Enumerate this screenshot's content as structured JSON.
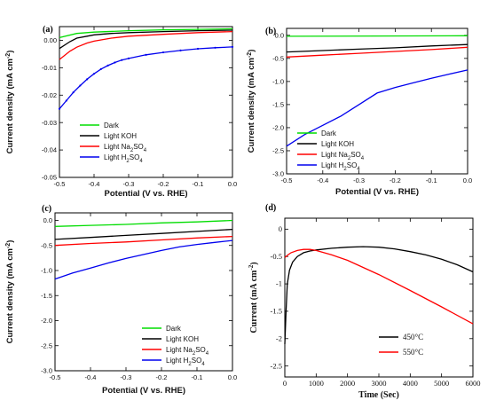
{
  "chart_data": [
    {
      "id": "a",
      "panel_label": "(a)",
      "type": "line",
      "xlabel": "Potential (V vs. RHE)",
      "ylabel_main": "Current density (mA cm",
      "ylabel_sup": "-2",
      "ylabel_tail": ")",
      "xlim": [
        -0.5,
        0.0
      ],
      "ylim": [
        -0.05,
        0.005
      ],
      "xticks": [
        -0.5,
        -0.4,
        -0.3,
        -0.2,
        -0.1,
        0.0
      ],
      "xtick_labels": [
        "-0.5",
        "-0.4",
        "-0.3",
        "-0.2",
        "-0.1",
        "0.0"
      ],
      "yticks": [
        0.0,
        -0.01,
        -0.02,
        -0.03,
        -0.04,
        -0.05
      ],
      "ytick_labels": [
        "0.00",
        "-0.01",
        "-0.02",
        "-0.03",
        "-0.04",
        "-0.05"
      ],
      "legend_position": "bottom-right",
      "series": [
        {
          "name": "Dark",
          "color": "#00dd00",
          "marker": false,
          "x": [
            -0.5,
            -0.45,
            -0.4,
            -0.3,
            -0.2,
            -0.1,
            0.0
          ],
          "y": [
            0.001,
            0.0025,
            0.003,
            0.0035,
            0.0038,
            0.004,
            0.0042
          ]
        },
        {
          "name": "Light KOH",
          "color": "#000000",
          "marker": false,
          "x": [
            -0.5,
            -0.47,
            -0.45,
            -0.42,
            -0.4,
            -0.35,
            -0.3,
            -0.2,
            -0.1,
            0.0
          ],
          "y": [
            -0.003,
            -0.0005,
            0.0008,
            0.0015,
            0.002,
            0.0025,
            0.0028,
            0.0032,
            0.0035,
            0.0037
          ]
        },
        {
          "name": "Light Na2SO4",
          "color": "#ff0000",
          "marker": false,
          "x": [
            -0.5,
            -0.47,
            -0.45,
            -0.42,
            -0.4,
            -0.35,
            -0.3,
            -0.2,
            -0.1,
            0.0
          ],
          "y": [
            -0.007,
            -0.004,
            -0.0025,
            -0.001,
            -0.0003,
            0.0008,
            0.0015,
            0.0022,
            0.0028,
            0.0032
          ]
        },
        {
          "name": "Light H2SO4",
          "color": "#0000ee",
          "marker": true,
          "x": [
            -0.5,
            -0.48,
            -0.46,
            -0.44,
            -0.42,
            -0.4,
            -0.38,
            -0.36,
            -0.34,
            -0.32,
            -0.3,
            -0.25,
            -0.2,
            -0.15,
            -0.1,
            -0.05,
            0.0
          ],
          "y": [
            -0.025,
            -0.022,
            -0.019,
            -0.0165,
            -0.0142,
            -0.0122,
            -0.0105,
            -0.0092,
            -0.0081,
            -0.0072,
            -0.0066,
            -0.0053,
            -0.0044,
            -0.0037,
            -0.0031,
            -0.0027,
            -0.0024
          ]
        }
      ]
    },
    {
      "id": "b",
      "panel_label": "(b)",
      "type": "line",
      "xlabel": "Potential (V vs. RHE)",
      "ylabel_main": "Current density (mA cm",
      "ylabel_sup": "-2",
      "ylabel_tail": ")",
      "xlim": [
        -0.5,
        0.0
      ],
      "ylim": [
        -3.0,
        0.15
      ],
      "xticks": [
        -0.5,
        -0.4,
        -0.3,
        -0.2,
        -0.1,
        0.0
      ],
      "xtick_labels": [
        "-0.5",
        "-0.4",
        "-0.3",
        "-0.2",
        "-0.1",
        "0.0"
      ],
      "yticks": [
        0.0,
        -0.5,
        -1.0,
        -1.5,
        -2.0,
        -2.5,
        -3.0
      ],
      "ytick_labels": [
        "0.0",
        "-0.5",
        "-1.0",
        "-1.5",
        "-2.0",
        "-2.5",
        "-3.0"
      ],
      "legend_position": "bottom-right",
      "series": [
        {
          "name": "Dark",
          "color": "#00dd00",
          "marker": false,
          "x": [
            -0.5,
            0.0
          ],
          "y": [
            -0.02,
            -0.01
          ]
        },
        {
          "name": "Light KOH",
          "color": "#000000",
          "marker": false,
          "x": [
            -0.5,
            -0.4,
            -0.3,
            -0.2,
            -0.1,
            0.0
          ],
          "y": [
            -0.36,
            -0.33,
            -0.3,
            -0.27,
            -0.23,
            -0.2
          ]
        },
        {
          "name": "Light Na2SO4",
          "color": "#ff0000",
          "marker": false,
          "x": [
            -0.5,
            -0.4,
            -0.3,
            -0.2,
            -0.1,
            0.0
          ],
          "y": [
            -0.47,
            -0.43,
            -0.39,
            -0.35,
            -0.31,
            -0.26
          ]
        },
        {
          "name": "Light H2SO4",
          "color": "#0000ee",
          "marker": false,
          "x": [
            -0.5,
            -0.45,
            -0.4,
            -0.35,
            -0.3,
            -0.25,
            -0.2,
            -0.15,
            -0.1,
            -0.05,
            0.0
          ],
          "y": [
            -2.4,
            -2.15,
            -1.95,
            -1.75,
            -1.5,
            -1.25,
            -1.13,
            -1.03,
            -0.93,
            -0.84,
            -0.75
          ]
        }
      ]
    },
    {
      "id": "c",
      "panel_label": "(c)",
      "type": "line",
      "xlabel": "Potential (V vs. RHE)",
      "ylabel_main": "Current density (mA cm",
      "ylabel_sup": "-2",
      "ylabel_tail": ")",
      "xlim": [
        -0.5,
        0.0
      ],
      "ylim": [
        -3.0,
        0.15
      ],
      "xticks": [
        -0.5,
        -0.4,
        -0.3,
        -0.2,
        -0.1,
        0.0
      ],
      "xtick_labels": [
        "-0.5",
        "-0.4",
        "-0.3",
        "-0.2",
        "-0.1",
        "0.0"
      ],
      "yticks": [
        0.0,
        -0.5,
        -1.0,
        -1.5,
        -2.0,
        -2.5,
        -3.0
      ],
      "ytick_labels": [
        "0.0",
        "-0.5",
        "-1.0",
        "-1.5",
        "-2.0",
        "-2.5",
        "-3.0"
      ],
      "legend_position": "bottom-right",
      "series": [
        {
          "name": "Dark",
          "color": "#00dd00",
          "marker": false,
          "x": [
            -0.5,
            -0.4,
            -0.3,
            -0.2,
            -0.1,
            0.0
          ],
          "y": [
            -0.12,
            -0.1,
            -0.08,
            -0.05,
            -0.03,
            0.0
          ]
        },
        {
          "name": "Light KOH",
          "color": "#000000",
          "marker": false,
          "x": [
            -0.5,
            -0.4,
            -0.3,
            -0.2,
            -0.1,
            0.0
          ],
          "y": [
            -0.38,
            -0.34,
            -0.3,
            -0.26,
            -0.22,
            -0.18
          ]
        },
        {
          "name": "Light Na2SO4",
          "color": "#ff0000",
          "marker": false,
          "x": [
            -0.5,
            -0.4,
            -0.3,
            -0.2,
            -0.1,
            0.0
          ],
          "y": [
            -0.5,
            -0.46,
            -0.43,
            -0.39,
            -0.35,
            -0.32
          ]
        },
        {
          "name": "Light H2SO4",
          "color": "#0000ee",
          "marker": false,
          "x": [
            -0.5,
            -0.45,
            -0.4,
            -0.35,
            -0.3,
            -0.25,
            -0.2,
            -0.15,
            -0.1,
            -0.05,
            0.0
          ],
          "y": [
            -1.17,
            -1.05,
            -0.95,
            -0.85,
            -0.76,
            -0.68,
            -0.6,
            -0.53,
            -0.48,
            -0.44,
            -0.4
          ]
        }
      ]
    },
    {
      "id": "d",
      "panel_label": "(d)",
      "type": "line",
      "xlabel": "Time (Sec)",
      "ylabel_main": "Current (mA cm",
      "ylabel_sup": "-2",
      "ylabel_tail": ")",
      "xlim": [
        0,
        6000
      ],
      "ylim": [
        -2.7,
        0.2
      ],
      "xticks": [
        0,
        1000,
        2000,
        3000,
        4000,
        5000,
        6000
      ],
      "xtick_labels": [
        "0",
        "1000",
        "2000",
        "3000",
        "4000",
        "5000",
        "6000"
      ],
      "yticks": [
        0.0,
        -0.5,
        -1.0,
        -1.5,
        -2.0,
        -2.5
      ],
      "ytick_labels": [
        "0",
        "-0.5",
        "-1",
        "-1.5",
        "-2",
        "-2.5"
      ],
      "legend_position": "bottom-right",
      "series": [
        {
          "name": "450°C",
          "color": "#000000",
          "marker": false,
          "x": [
            0,
            40,
            80,
            150,
            250,
            400,
            600,
            800,
            1000,
            1500,
            2000,
            2500,
            3000,
            3500,
            4000,
            4500,
            5000,
            5500,
            6000
          ],
          "y": [
            -2.1,
            -1.5,
            -1.0,
            -0.75,
            -0.6,
            -0.5,
            -0.43,
            -0.4,
            -0.38,
            -0.35,
            -0.33,
            -0.32,
            -0.33,
            -0.36,
            -0.41,
            -0.47,
            -0.55,
            -0.65,
            -0.78
          ]
        },
        {
          "name": "550°C",
          "color": "#ff0000",
          "marker": false,
          "x": [
            0,
            100,
            200,
            400,
            600,
            800,
            1000,
            1500,
            2000,
            3000,
            4000,
            5000,
            6000
          ],
          "y": [
            -0.52,
            -0.47,
            -0.43,
            -0.39,
            -0.37,
            -0.37,
            -0.39,
            -0.47,
            -0.57,
            -0.83,
            -1.12,
            -1.42,
            -1.73
          ]
        }
      ]
    }
  ]
}
